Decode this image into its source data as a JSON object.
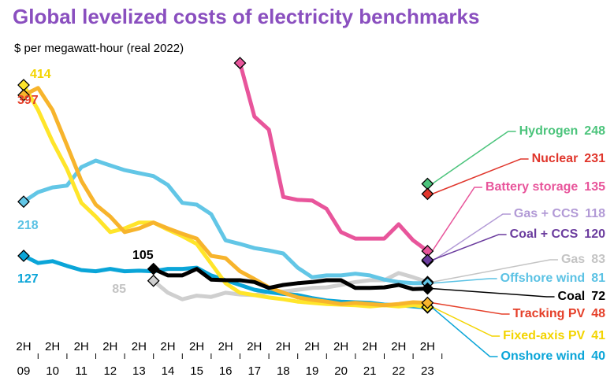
{
  "chart_data": {
    "type": "line",
    "title": "Global levelized costs of electricity benchmarks",
    "subtitle": "$ per megawatt-hour (real 2022)",
    "period_label": "2H",
    "categories": [
      "09",
      null,
      "10",
      null,
      "11",
      null,
      "12",
      null,
      "13",
      null,
      "14",
      null,
      "15",
      null,
      "16",
      null,
      "17",
      null,
      "18",
      null,
      "19",
      null,
      "20",
      null,
      "21",
      null,
      "22",
      null,
      "23"
    ],
    "ylim": [
      0,
      470
    ],
    "series": [
      {
        "name": "Hydrogen",
        "color": "#4cc47c",
        "label_color": "#4cc47c",
        "values": [
          null,
          null,
          null,
          null,
          null,
          null,
          null,
          null,
          null,
          null,
          null,
          null,
          null,
          null,
          null,
          null,
          null,
          null,
          null,
          null,
          null,
          null,
          null,
          null,
          null,
          null,
          null,
          null,
          248
        ]
      },
      {
        "name": "Nuclear",
        "color": "#e0362c",
        "label_color": "#e0362c",
        "values": [
          null,
          null,
          null,
          null,
          null,
          null,
          null,
          null,
          null,
          null,
          null,
          null,
          null,
          null,
          null,
          null,
          null,
          null,
          null,
          null,
          null,
          null,
          null,
          null,
          null,
          null,
          null,
          null,
          231
        ]
      },
      {
        "name": "Battery storage",
        "color": "#e8559b",
        "label_color": "#e8559b",
        "values": [
          null,
          null,
          null,
          null,
          null,
          null,
          null,
          null,
          null,
          null,
          null,
          null,
          null,
          null,
          null,
          451,
          361,
          339,
          226,
          221,
          220,
          206,
          167,
          156,
          156,
          156,
          180,
          153,
          135
        ]
      },
      {
        "name": "Gas + CCS",
        "color": "#b9a0dc",
        "label_color": "#b29ad6",
        "values": [
          null,
          null,
          null,
          null,
          null,
          null,
          null,
          null,
          null,
          null,
          null,
          null,
          null,
          null,
          null,
          null,
          null,
          null,
          null,
          null,
          null,
          null,
          null,
          null,
          null,
          null,
          null,
          null,
          118
        ]
      },
      {
        "name": "Coal + CCS",
        "color": "#6b3c9e",
        "label_color": "#6b3c9e",
        "values": [
          null,
          null,
          null,
          null,
          null,
          null,
          null,
          null,
          null,
          null,
          null,
          null,
          null,
          null,
          null,
          null,
          null,
          null,
          null,
          null,
          null,
          null,
          null,
          null,
          null,
          null,
          null,
          null,
          120
        ]
      },
      {
        "name": "Gas",
        "color": "#cfcfcf",
        "label_color": "#c4c4c4",
        "values": [
          null,
          null,
          null,
          null,
          null,
          null,
          null,
          null,
          null,
          85,
          65,
          54,
          60,
          58,
          65,
          62,
          61,
          67,
          67,
          70,
          73,
          74,
          78,
          83,
          86,
          86,
          98,
          91,
          83
        ]
      },
      {
        "name": "Offshore wind",
        "color": "#62c6e6",
        "label_color": "#5bc2e4",
        "values": [
          218,
          234,
          242,
          245,
          276,
          287,
          279,
          271,
          266,
          261,
          246,
          216,
          213,
          197,
          153,
          147,
          140,
          136,
          131,
          107,
          91,
          94,
          94,
          97,
          94,
          87,
          83,
          81,
          81
        ]
      },
      {
        "name": "Coal",
        "color": "#000000",
        "label_color": "#000000",
        "values": [
          null,
          null,
          null,
          null,
          null,
          null,
          null,
          null,
          null,
          105,
          94,
          94,
          105,
          87,
          86,
          86,
          83,
          73,
          78,
          81,
          83,
          86,
          86,
          73,
          73,
          74,
          78,
          71,
          72
        ]
      },
      {
        "name": "Tracking PV",
        "color": "#f7b42c",
        "label_color": "#e5402a",
        "values": [
          397,
          409,
          372,
          313,
          253,
          213,
          193,
          167,
          173,
          183,
          173,
          164,
          156,
          127,
          123,
          101,
          88,
          74,
          65,
          57,
          53,
          50,
          46,
          48,
          46,
          44,
          46,
          49,
          48
        ]
      },
      {
        "name": "Fixed-axis PV",
        "color": "#ffe52a",
        "label_color": "#f3d400",
        "values": [
          414,
          372,
          319,
          273,
          216,
          193,
          167,
          173,
          183,
          183,
          171,
          160,
          147,
          114,
          81,
          65,
          61,
          57,
          54,
          50,
          48,
          46,
          45,
          44,
          42,
          44,
          42,
          44,
          41
        ]
      },
      {
        "name": "Onshore wind",
        "color": "#0aa5d8",
        "label_color": "#0aa5d8",
        "values": [
          127,
          115,
          118,
          110,
          103,
          101,
          105,
          101,
          102,
          101,
          105,
          105,
          107,
          94,
          86,
          78,
          70,
          66,
          63,
          61,
          56,
          52,
          50,
          49,
          48,
          45,
          44,
          42,
          40
        ]
      }
    ]
  }
}
